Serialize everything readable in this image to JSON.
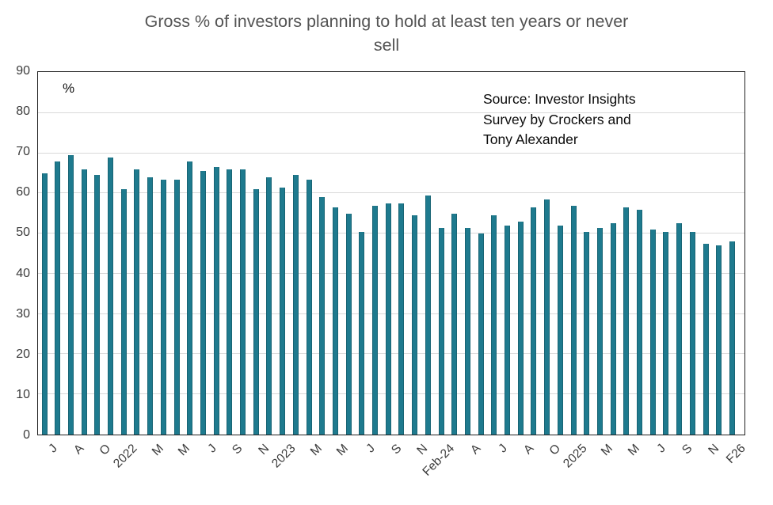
{
  "title_lines": [
    "Gross % of investors planning to hold at least ten years or never",
    "sell"
  ],
  "y_axis_unit_label": "%",
  "source_note": {
    "line1": "Source: Investor Insights",
    "line2": "Survey by Crockers and",
    "line3": "Tony Alexander"
  },
  "chart_data": {
    "type": "bar",
    "title": "Gross % of investors planning to hold at least ten years or never sell",
    "ylabel": "%",
    "xlabel": "",
    "ylim": [
      0,
      90
    ],
    "y_tick_interval": 10,
    "y_tick_labels": [
      "0",
      "10",
      "20",
      "30",
      "40",
      "50",
      "60",
      "70",
      "80",
      "90"
    ],
    "grid": true,
    "legend": false,
    "bar_color": "#1e7a8e",
    "gridline_color": "#d9d9d9",
    "n_bars": 53,
    "x_tick_labels": [
      "J",
      "A",
      "O",
      "2022",
      "M",
      "M",
      "J",
      "S",
      "N",
      "2023",
      "M",
      "M",
      "J",
      "S",
      "N",
      "Feb-24",
      "A",
      "J",
      "A",
      "O",
      "2025",
      "M",
      "M",
      "J",
      "S",
      "N",
      "F26"
    ],
    "x_tick_placement": "every_other_bar_starting_with_first",
    "values": [
      65,
      68,
      69.5,
      66,
      64.5,
      69,
      61,
      66,
      64,
      63.5,
      63.5,
      68,
      65.5,
      66.5,
      66,
      66,
      61,
      64,
      61.5,
      64.5,
      63.5,
      59,
      56.5,
      55,
      50.5,
      57,
      57.5,
      57.5,
      54.5,
      59.5,
      51.5,
      55,
      51.5,
      50,
      54.5,
      52,
      53,
      56.5,
      58.5,
      52,
      57,
      50.5,
      51.5,
      52.5,
      56.5,
      56,
      51,
      50.5,
      52.5,
      50.5,
      47.5,
      47,
      48
    ],
    "source_annotation": "Source: Investor Insights Survey by Crockers and Tony Alexander"
  }
}
